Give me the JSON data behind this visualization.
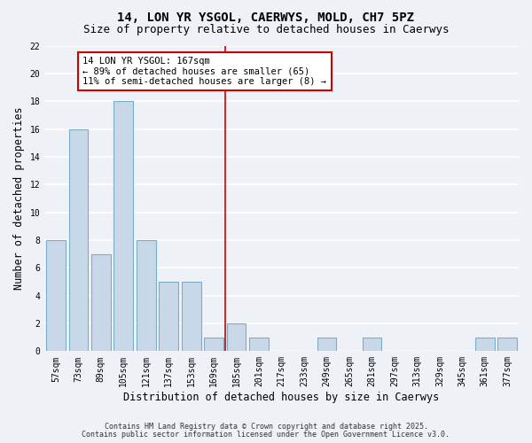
{
  "title": "14, LON YR YSGOL, CAERWYS, MOLD, CH7 5PZ",
  "subtitle": "Size of property relative to detached houses in Caerwys",
  "xlabel": "Distribution of detached houses by size in Caerwys",
  "ylabel": "Number of detached properties",
  "categories": [
    "57sqm",
    "73sqm",
    "89sqm",
    "105sqm",
    "121sqm",
    "137sqm",
    "153sqm",
    "169sqm",
    "185sqm",
    "201sqm",
    "217sqm",
    "233sqm",
    "249sqm",
    "265sqm",
    "281sqm",
    "297sqm",
    "313sqm",
    "329sqm",
    "345sqm",
    "361sqm",
    "377sqm"
  ],
  "values": [
    8,
    16,
    7,
    18,
    8,
    5,
    5,
    1,
    2,
    1,
    0,
    0,
    1,
    0,
    1,
    0,
    0,
    0,
    0,
    1,
    1
  ],
  "bar_color": "#c8d8e8",
  "bar_edge_color": "#7aadc8",
  "red_line_index": 7,
  "annotation_title": "14 LON YR YSGOL: 167sqm",
  "annotation_line1": "← 89% of detached houses are smaller (65)",
  "annotation_line2": "11% of semi-detached houses are larger (8) →",
  "annotation_box_color": "#ffffff",
  "annotation_border_color": "#cc0000",
  "ylim": [
    0,
    22
  ],
  "yticks": [
    0,
    2,
    4,
    6,
    8,
    10,
    12,
    14,
    16,
    18,
    20,
    22
  ],
  "background_color": "#eef2f7",
  "grid_color": "#ffffff",
  "footer_line1": "Contains HM Land Registry data © Crown copyright and database right 2025.",
  "footer_line2": "Contains public sector information licensed under the Open Government Licence v3.0.",
  "title_fontsize": 10,
  "subtitle_fontsize": 9,
  "axis_label_fontsize": 8.5,
  "tick_fontsize": 7,
  "annotation_fontsize": 7.5,
  "footer_fontsize": 6
}
